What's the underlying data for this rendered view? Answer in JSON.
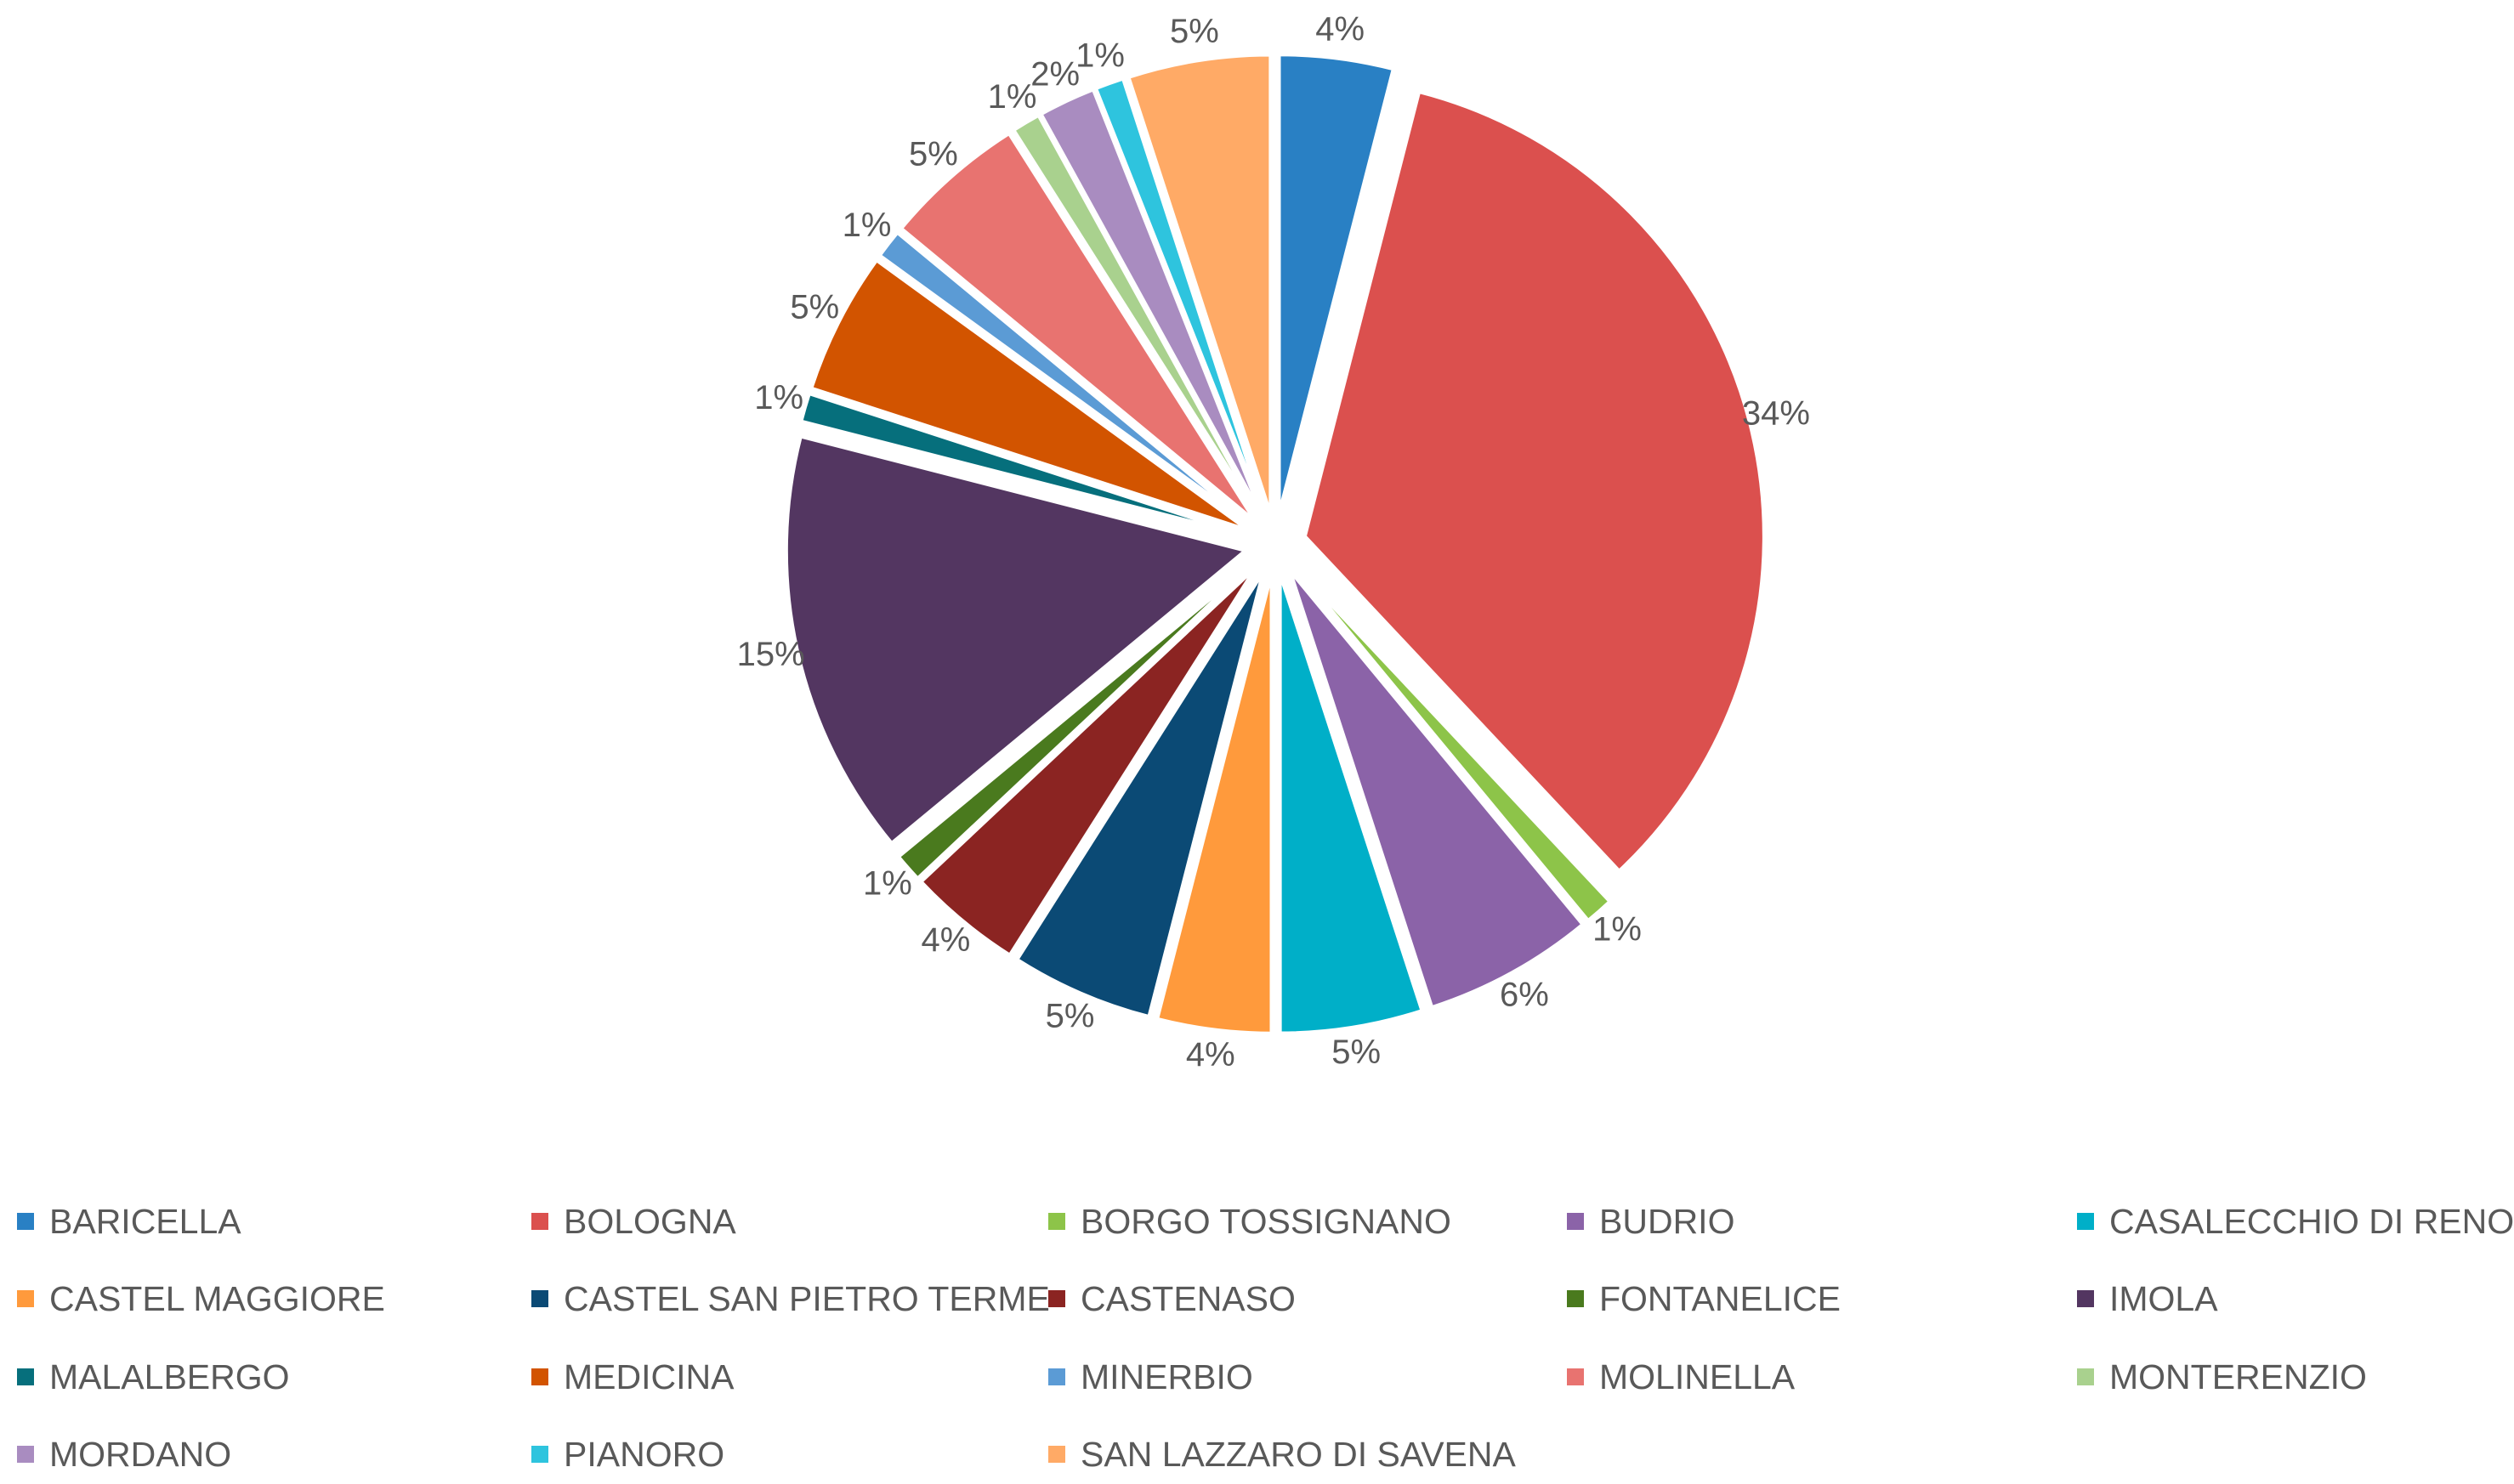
{
  "chart_data": {
    "type": "pie",
    "title": "",
    "legend_position": "bottom",
    "exploded": true,
    "data_label_format": "percent",
    "slices": [
      {
        "label": "BARICELLA",
        "value": 4,
        "display": "4%",
        "color": "#2980C4"
      },
      {
        "label": "BOLOGNA",
        "value": 34,
        "display": "34%",
        "color": "#DB504E"
      },
      {
        "label": "BORGO TOSSIGNANO",
        "value": 1,
        "display": "1%",
        "color": "#8DC449"
      },
      {
        "label": "BUDRIO",
        "value": 6,
        "display": "6%",
        "color": "#8B63A8"
      },
      {
        "label": "CASALECCHIO DI RENO",
        "value": 5,
        "display": "5%",
        "color": "#00AFC8"
      },
      {
        "label": "CASTEL MAGGIORE",
        "value": 4,
        "display": "4%",
        "color": "#FF9A3C"
      },
      {
        "label": "CASTEL SAN PIETRO TERME",
        "value": 5,
        "display": "5%",
        "color": "#0B4A75"
      },
      {
        "label": "CASTENASO",
        "value": 4,
        "display": "4%",
        "color": "#8B2422"
      },
      {
        "label": "FONTANELICE",
        "value": 1,
        "display": "1%",
        "color": "#4A7A1E"
      },
      {
        "label": "IMOLA",
        "value": 15,
        "display": "15%",
        "color": "#533661"
      },
      {
        "label": "MALALBERGO",
        "value": 1,
        "display": "1%",
        "color": "#066F7C"
      },
      {
        "label": "MEDICINA",
        "value": 5,
        "display": "5%",
        "color": "#D25400"
      },
      {
        "label": "MINERBIO",
        "value": 1,
        "display": "1%",
        "color": "#5B9BD5"
      },
      {
        "label": "MOLINELLA",
        "value": 5,
        "display": "5%",
        "color": "#E87370"
      },
      {
        "label": "MONTERENZIO",
        "value": 1,
        "display": "1%",
        "color": "#A9D18E"
      },
      {
        "label": "MORDANO",
        "value": 2,
        "display": "2%",
        "color": "#A98CC0"
      },
      {
        "label": "PIANORO",
        "value": 1,
        "display": "1%",
        "color": "#2EC4DE"
      },
      {
        "label": "SAN LAZZARO DI SAVENA",
        "value": 5,
        "display": "5%",
        "color": "#FFAA66"
      }
    ]
  }
}
